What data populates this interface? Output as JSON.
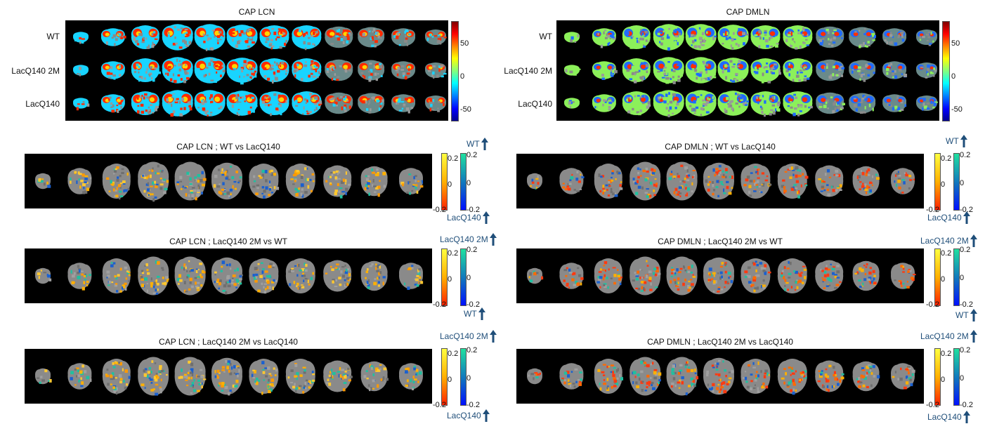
{
  "cap_panels": [
    {
      "title": "CAP LCN",
      "rows": [
        "WT",
        "LacQ140 2M",
        "LacQ140"
      ],
      "colorbar_ticks": [
        "50",
        "0",
        "-50"
      ],
      "colors": {
        "blob": "#19d4ff",
        "edge": "#ff2a00",
        "hot": "#ffd400"
      }
    },
    {
      "title": "CAP DMLN",
      "rows": [
        "WT",
        "LacQ140 2M",
        "LacQ140"
      ],
      "colorbar_ticks": [
        "50",
        "0",
        "-50"
      ],
      "colors": {
        "blob": "#8cf05a",
        "edge": "#1f6bff",
        "hot": "#ff3000"
      }
    }
  ],
  "comparison_panels": [
    {
      "title": "CAP LCN ; WT vs LacQ140",
      "top_group": "WT",
      "bottom_group": "LacQ140",
      "warm_ticks": [
        "0.2",
        "0",
        "-0.2"
      ],
      "cool_ticks": [
        "0.2",
        "0",
        "-0.2"
      ]
    },
    {
      "title": "CAP DMLN ; WT vs LacQ140",
      "top_group": "WT",
      "bottom_group": "LacQ140",
      "warm_ticks": [
        "0.2",
        "0",
        "-0.2"
      ],
      "cool_ticks": [
        "0.2",
        "0",
        "-0.2"
      ]
    },
    {
      "title": "CAP LCN ; LacQ140 2M vs WT",
      "top_group": "LacQ140 2M",
      "bottom_group": "WT",
      "warm_ticks": [
        "0.2",
        "0",
        "-0.2"
      ],
      "cool_ticks": [
        "0.2",
        "0",
        "-0.2"
      ]
    },
    {
      "title": "CAP DMLN ; LacQ140 2M vs WT",
      "top_group": "LacQ140 2M",
      "bottom_group": "WT",
      "warm_ticks": [
        "0.2",
        "0",
        "-0.2"
      ],
      "cool_ticks": [
        "0.2",
        "0",
        "-0.2"
      ]
    },
    {
      "title": "CAP LCN ; LacQ140 2M vs LacQ140",
      "top_group": "LacQ140 2M",
      "bottom_group": "LacQ140",
      "warm_ticks": [
        "0.2",
        "0",
        "-0.2"
      ],
      "cool_ticks": [
        "0.2",
        "0",
        "-0.2"
      ]
    },
    {
      "title": "CAP DMLN ; LacQ140 2M vs LacQ140",
      "top_group": "LacQ140 2M",
      "bottom_group": "LacQ140",
      "warm_ticks": [
        "0.2",
        "0",
        "-0.2"
      ],
      "cool_ticks": [
        "0.2",
        "0",
        "-0.2"
      ]
    }
  ],
  "style": {
    "background": "#000000",
    "arrow_color": "#1f4e79",
    "gray": "#8a8a8a"
  }
}
